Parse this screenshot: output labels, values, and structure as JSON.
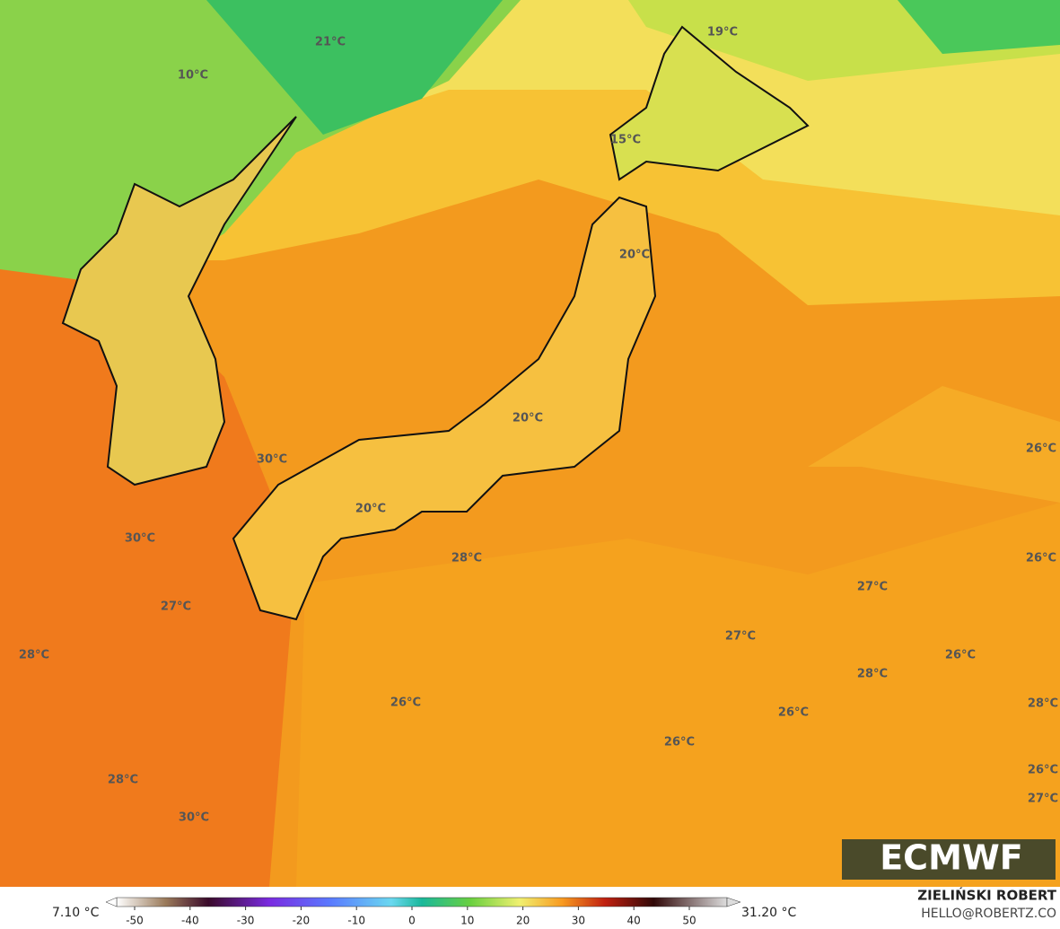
{
  "map": {
    "temperature_labels": [
      "21°C",
      "10°C",
      "19°C",
      "15°C",
      "20°C",
      "20°C",
      "30°C",
      "20°C",
      "30°C",
      "28°C",
      "27°C",
      "28°C",
      "27°C",
      "27°C",
      "26°C",
      "28°C",
      "26°C",
      "26°C",
      "26°C",
      "28°C",
      "30°C",
      "26°C",
      "26°C",
      "28°C",
      "26°C",
      "27°C"
    ],
    "logo": "ECMWF"
  },
  "colorbar": {
    "min_label": "7.10 °C",
    "max_label": "31.20 °C",
    "ticks": [
      -50,
      -40,
      -30,
      -20,
      -10,
      0,
      10,
      20,
      30,
      40,
      50
    ]
  },
  "credits": {
    "author": "ZIELIŃSKI ROBERT",
    "email": "HELLO@ROBERTZ.CO"
  }
}
